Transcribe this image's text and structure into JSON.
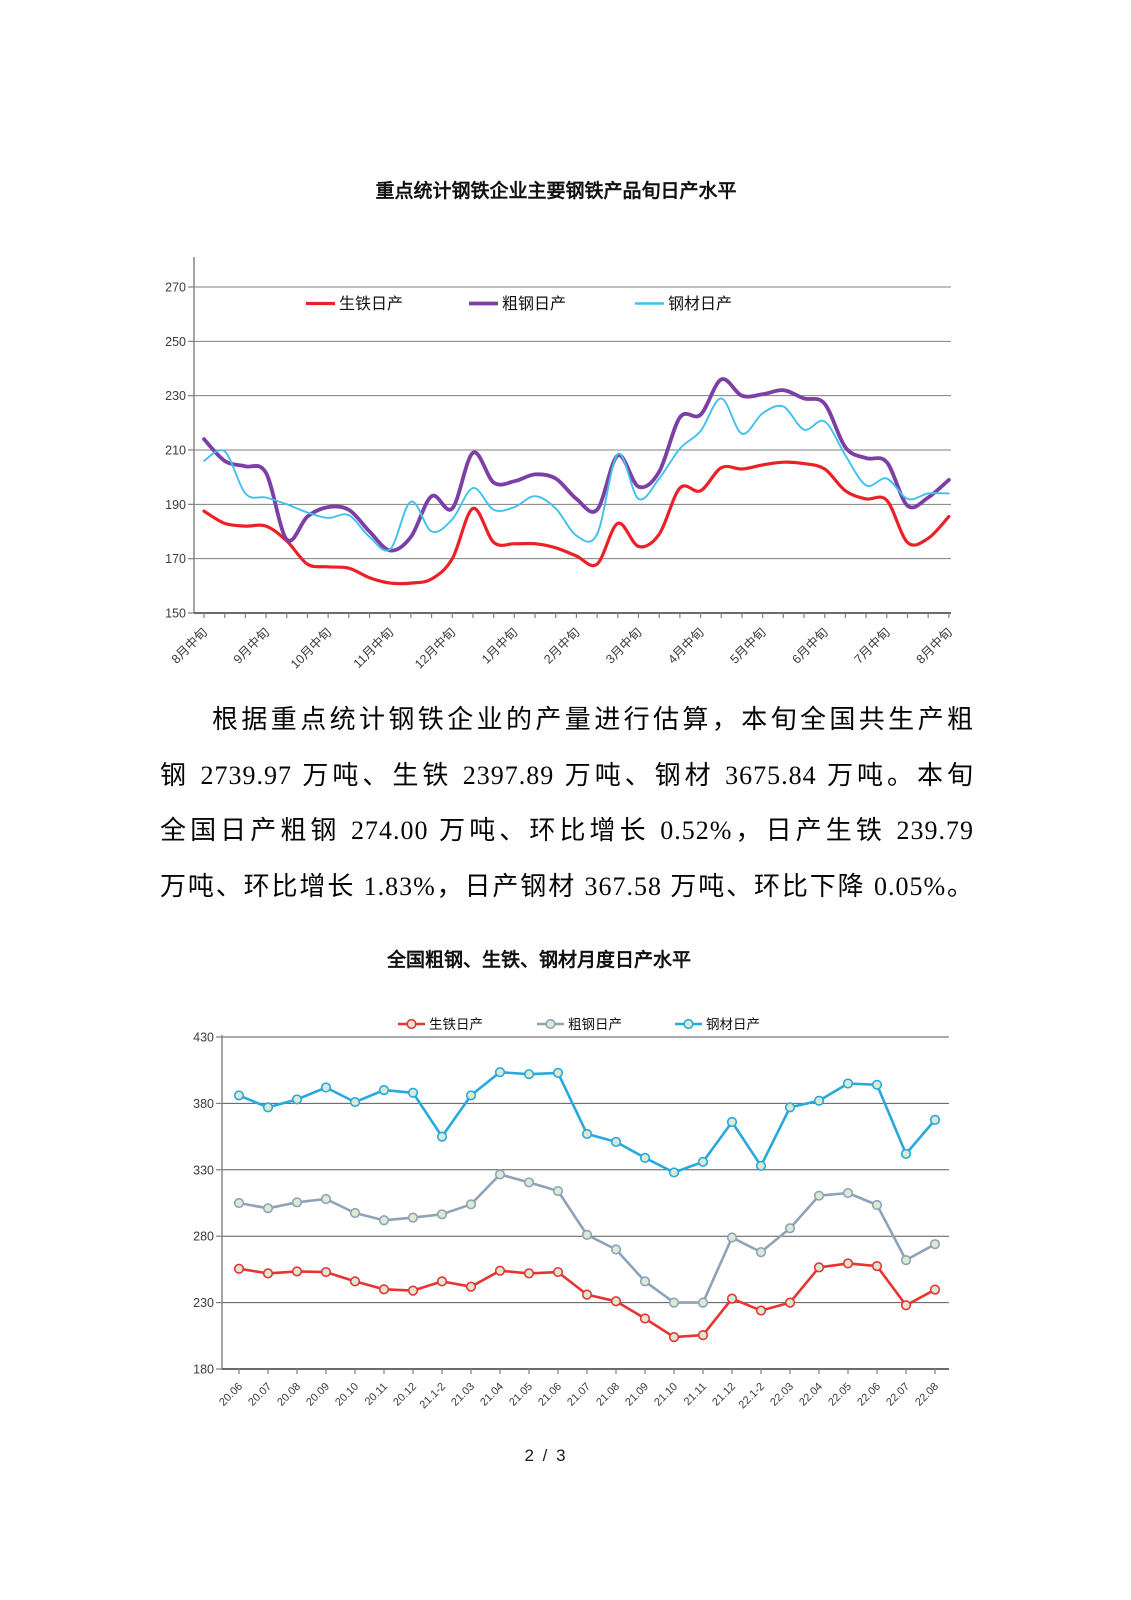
{
  "page": {
    "page_number": "2 / 3"
  },
  "paragraph": {
    "lines": [
      "根据重点统计钢铁企业的产量进行估算，本旬全国共生产粗",
      "钢 2739.97 万吨、生铁 2397.89 万吨、钢材 3675.84 万吨。本旬",
      "全国日产粗钢 274.00 万吨、环比增长 0.52%，日产生铁 239.79",
      "万吨、环比增长 1.83%，日产钢材 367.58 万吨、环比下降 0.05%。"
    ]
  },
  "chart_data": [
    {
      "id": "tenday-chart",
      "type": "line",
      "title": "重点统计钢铁企业主要钢铁产品旬日产水平",
      "smooth": true,
      "markers": false,
      "ylim": [
        150,
        270
      ],
      "ytick_step": 20,
      "yticks": [
        150,
        170,
        190,
        210,
        230,
        250,
        270
      ],
      "grid": true,
      "legend_position": "top-inside",
      "xtick_label_every": 3,
      "categories": [
        "8月中旬",
        "8月下旬",
        "9月上旬",
        "9月中旬",
        "9月下旬",
        "10月上旬",
        "10月中旬",
        "10月下旬",
        "11月上旬",
        "11月中旬",
        "11月下旬",
        "12月上旬",
        "12月中旬",
        "12月下旬",
        "1月上旬",
        "1月中旬",
        "1月下旬",
        "2月上旬",
        "2月中旬",
        "2月下旬",
        "3月上旬",
        "3月中旬",
        "3月下旬",
        "4月上旬",
        "4月中旬",
        "4月下旬",
        "5月上旬",
        "5月中旬",
        "5月下旬",
        "6月上旬",
        "6月中旬",
        "6月下旬",
        "7月上旬",
        "7月中旬",
        "7月下旬",
        "8月上旬",
        "8月中旬"
      ],
      "series": [
        {
          "name": "生铁日产",
          "color": "#EC2127",
          "values": [
            187.5,
            183,
            182,
            182,
            176.5,
            168,
            167,
            166.5,
            163,
            161,
            161,
            162.5,
            170,
            188.5,
            176,
            175.5,
            175.5,
            174,
            171,
            168,
            183,
            174.5,
            179,
            196,
            195,
            203.5,
            203,
            204.5,
            205.5,
            205,
            203,
            195,
            192,
            191.5,
            176,
            177.5,
            185.5
          ]
        },
        {
          "name": "粗钢日产",
          "color": "#7C3FA5",
          "values": [
            214,
            206,
            204,
            201.5,
            177,
            185.5,
            189,
            188,
            180,
            173,
            178,
            193,
            188.5,
            209,
            198,
            198.5,
            201,
            199.5,
            192,
            188,
            208,
            196.5,
            202,
            222,
            223,
            236,
            230,
            230.5,
            232,
            229,
            227,
            211,
            207,
            205.5,
            189.5,
            192.5,
            199
          ]
        },
        {
          "name": "钢材日产",
          "color": "#3FC1F0",
          "values": [
            206,
            209.5,
            194,
            192.5,
            190,
            187,
            185,
            186,
            178,
            173.5,
            191,
            180,
            184.5,
            196,
            188,
            189,
            193,
            188.5,
            178.5,
            179,
            208.5,
            192,
            199.5,
            210.5,
            217,
            229,
            216,
            223.5,
            226,
            217.5,
            220.5,
            208,
            197,
            199.5,
            192,
            194,
            194
          ]
        }
      ]
    },
    {
      "id": "monthly-chart",
      "type": "line",
      "title": "全国粗钢、生铁、钢材月度日产水平",
      "smooth": false,
      "markers": true,
      "marker_fill": "#DDEAD3",
      "ylim": [
        180,
        430
      ],
      "ytick_step": 50,
      "yticks": [
        180,
        230,
        280,
        330,
        380,
        430
      ],
      "grid": true,
      "legend_position": "top",
      "xtick_label_every": 1,
      "categories": [
        "20.06",
        "20.07",
        "20.08",
        "20.09",
        "20.10",
        "20.11",
        "20.12",
        "21.1-2",
        "21.03",
        "21.04",
        "21.05",
        "21.06",
        "21.07",
        "21.08",
        "21.09",
        "21.10",
        "21.11",
        "21.12",
        "22.1-2",
        "22.03",
        "22.04",
        "22.05",
        "22.06",
        "22.07",
        "22.08"
      ],
      "series": [
        {
          "name": "生铁日产",
          "color": "#E73433",
          "values": [
            255.5,
            252,
            253.5,
            253,
            246,
            240,
            239,
            246,
            242,
            254,
            252,
            253,
            236,
            231,
            218,
            204,
            205.5,
            233,
            224,
            230,
            256.5,
            259.5,
            257.5,
            228,
            239.8
          ]
        },
        {
          "name": "粗钢日产",
          "color": "#8FA3B8",
          "values": [
            305,
            301,
            305.5,
            308,
            297.5,
            292,
            294,
            296.5,
            304,
            326.5,
            320.5,
            314,
            281,
            270,
            246,
            230,
            230,
            279,
            268,
            286,
            310.5,
            312.5,
            303.5,
            262,
            274
          ]
        },
        {
          "name": "钢材日产",
          "color": "#28A9DE",
          "values": [
            386,
            377,
            383,
            392,
            381,
            390,
            388,
            355,
            386,
            403.5,
            402,
            403,
            357,
            351,
            339,
            328,
            336,
            366,
            333,
            377,
            382,
            395,
            394,
            342,
            367.6
          ]
        }
      ]
    }
  ],
  "colors": {
    "grid_chart1": "#7F7F7F",
    "grid_chart2": "#595959",
    "axis": "#7F7F7F",
    "axis_text": "#3B3B3B"
  }
}
